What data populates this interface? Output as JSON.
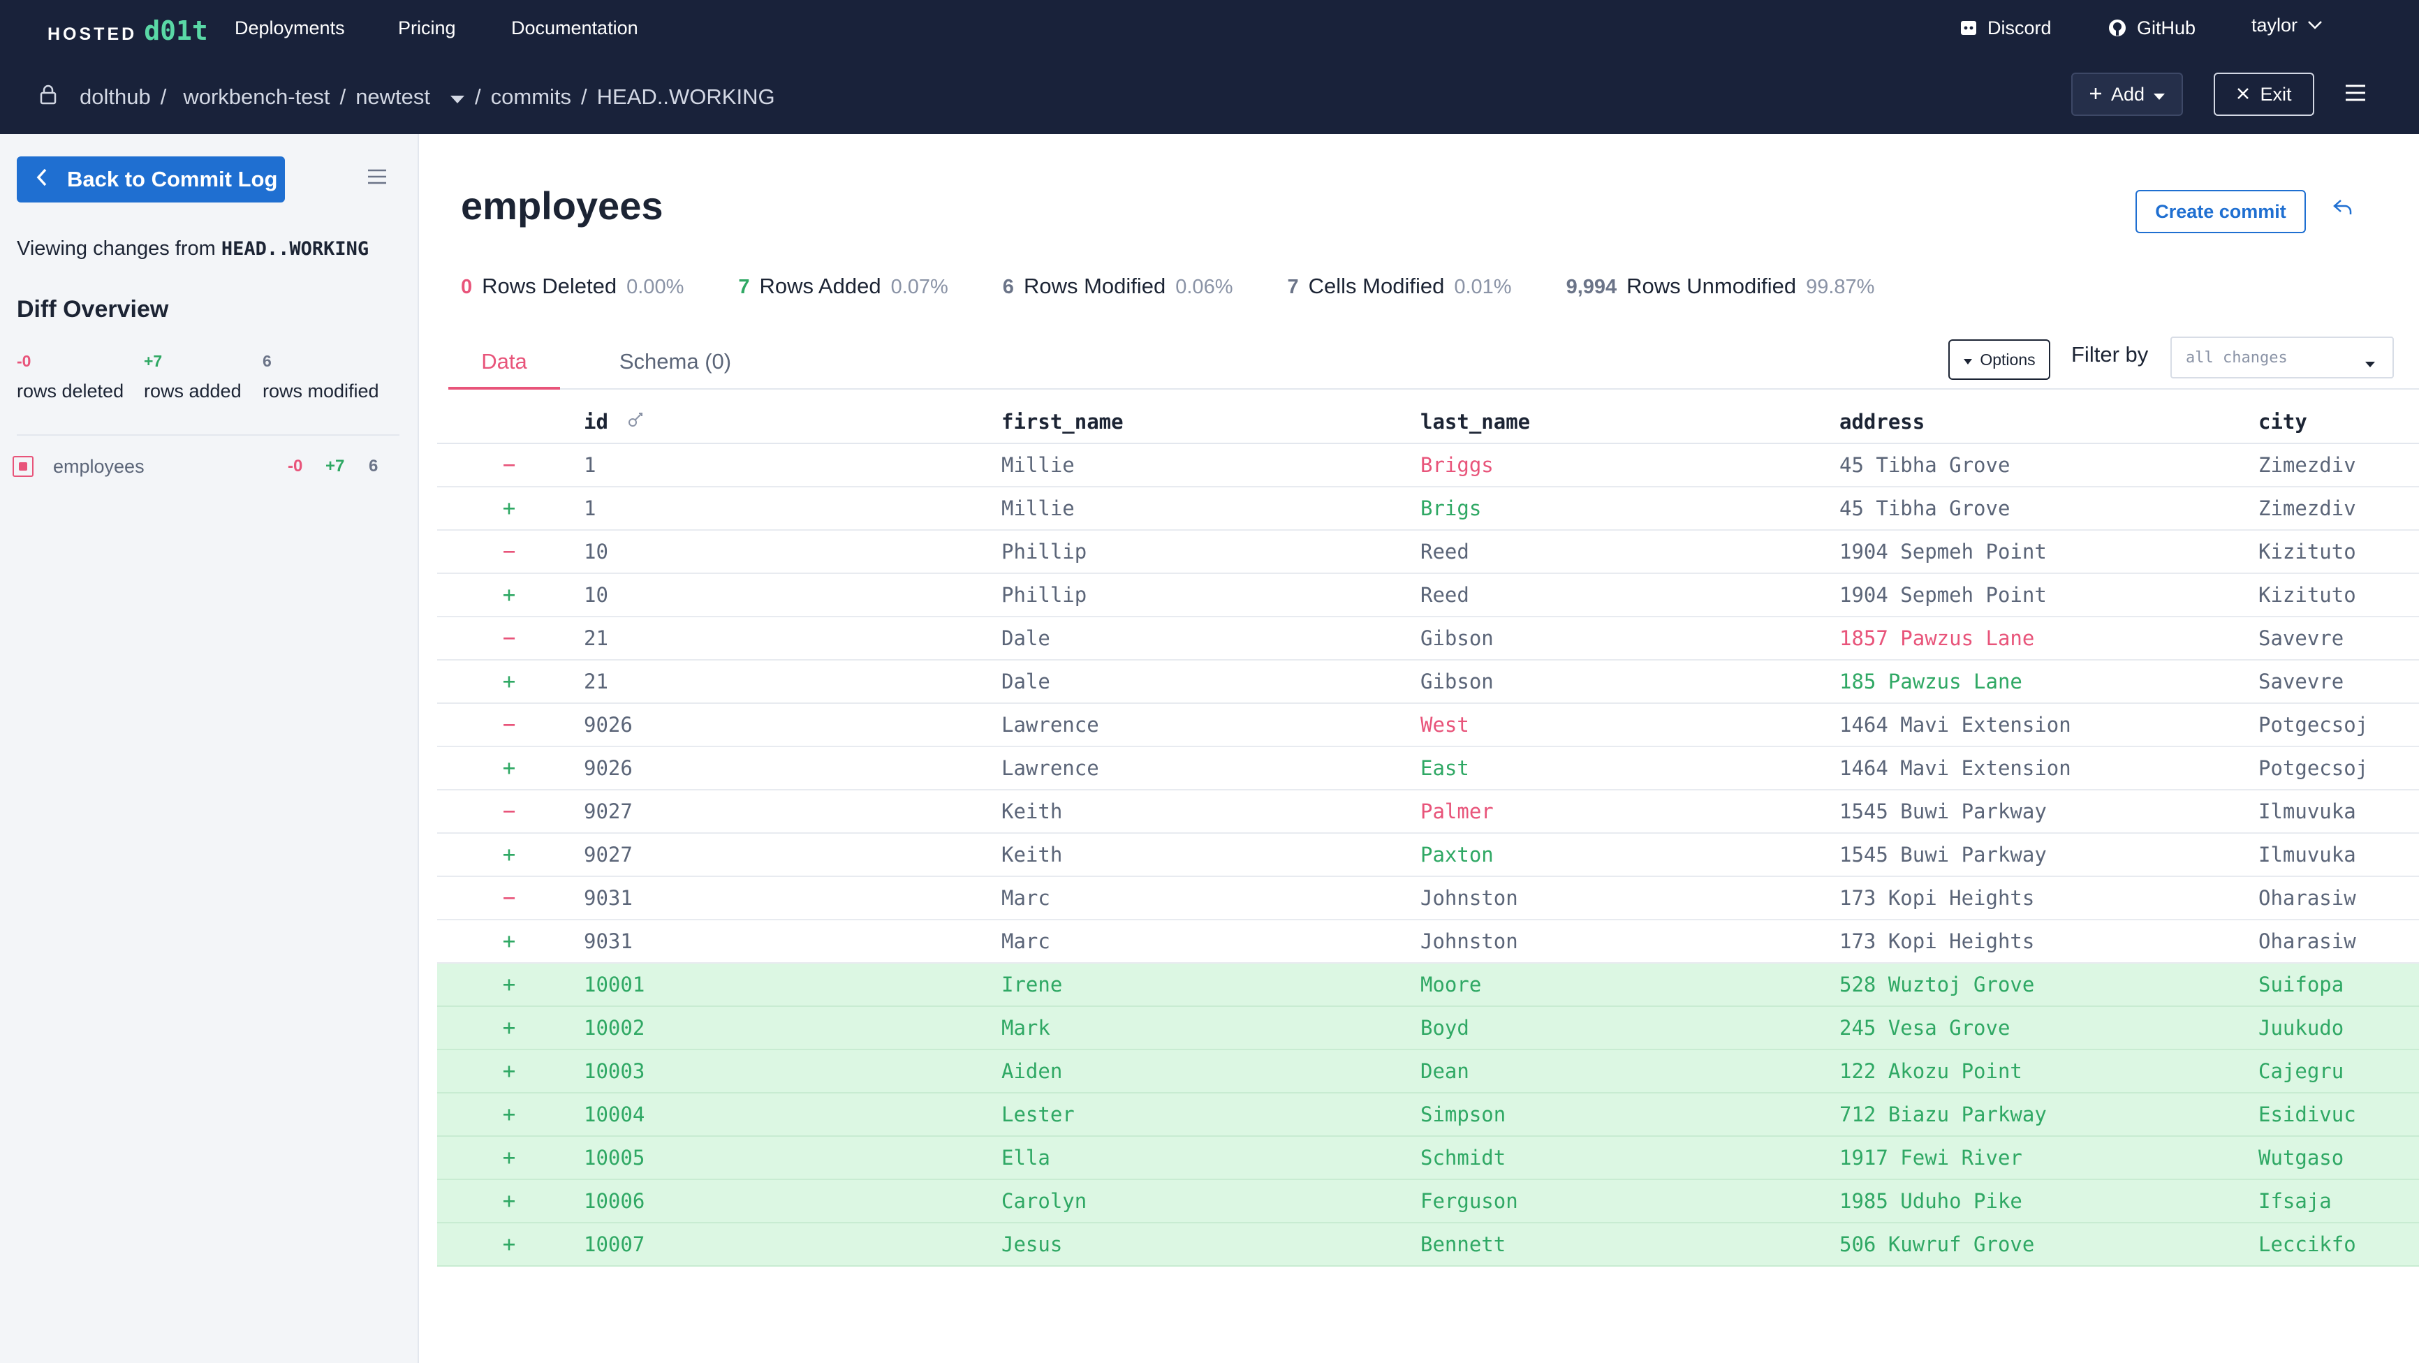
{
  "topbar": {
    "logo_hosted": "HOSTED",
    "logo_dolt": "d01t",
    "nav": [
      "Deployments",
      "Pricing",
      "Documentation"
    ],
    "discord": "Discord",
    "github": "GitHub",
    "user": "taylor",
    "breadcrumb": {
      "owner": "dolthub",
      "database": "workbench-test",
      "branch": "newtest",
      "section": "commits",
      "ref": "HEAD..WORKING"
    },
    "add_label": "Add",
    "exit_label": "Exit"
  },
  "sidebar": {
    "back_label": "Back to Commit Log",
    "viewing_prefix": "Viewing changes from ",
    "viewing_ref": "HEAD..WORKING",
    "diff_title": "Diff Overview",
    "stats": {
      "deleted_num": "-0",
      "deleted_label": "rows deleted",
      "added_num": "+7",
      "added_label": "rows added",
      "modified_num": "6",
      "modified_label": "rows modified"
    },
    "table": {
      "name": "employees",
      "deleted": "-0",
      "added": "+7",
      "modified": "6"
    }
  },
  "main": {
    "title": "employees",
    "create_commit": "Create commit",
    "summary": {
      "deleted_n": "0",
      "deleted_label": "Rows Deleted",
      "deleted_pct": "0.00%",
      "added_n": "7",
      "added_label": "Rows Added",
      "added_pct": "0.07%",
      "modified_n": "6",
      "modified_label": "Rows Modified",
      "modified_pct": "0.06%",
      "cells_n": "7",
      "cells_label": "Cells Modified",
      "cells_pct": "0.01%",
      "unmod_n": "9,994",
      "unmod_label": "Rows Unmodified",
      "unmod_pct": "99.87%"
    },
    "tabs": {
      "data": "Data",
      "schema": "Schema (0)"
    },
    "options_label": "Options",
    "filter_label": "Filter by",
    "filter_value": "all changes",
    "columns": [
      "id",
      "first_name",
      "last_name",
      "address",
      "city"
    ],
    "rows": [
      {
        "mark": "−",
        "type": "removed",
        "id": "1",
        "first": "Millie",
        "last": "Briggs",
        "addr": "45 Tibha Grove",
        "city": "Zimezdiv",
        "changed": "last"
      },
      {
        "mark": "+",
        "type": "added",
        "id": "1",
        "first": "Millie",
        "last": "Brigs",
        "addr": "45 Tibha Grove",
        "city": "Zimezdiv",
        "changed": "last"
      },
      {
        "mark": "−",
        "type": "removed",
        "id": "10",
        "first": "Phillip",
        "last": "Reed",
        "addr": "1904 Sepmeh Point",
        "city": "Kizituto",
        "changed": ""
      },
      {
        "mark": "+",
        "type": "added",
        "id": "10",
        "first": "Phillip",
        "last": "Reed",
        "addr": "1904 Sepmeh Point",
        "city": "Kizituto",
        "changed": ""
      },
      {
        "mark": "−",
        "type": "removed",
        "id": "21",
        "first": "Dale",
        "last": "Gibson",
        "addr": "1857 Pawzus Lane",
        "city": "Savevre",
        "changed": "addr"
      },
      {
        "mark": "+",
        "type": "added",
        "id": "21",
        "first": "Dale",
        "last": "Gibson",
        "addr": "185 Pawzus Lane",
        "city": "Savevre",
        "changed": "addr"
      },
      {
        "mark": "−",
        "type": "removed",
        "id": "9026",
        "first": "Lawrence",
        "last": "West",
        "addr": "1464 Mavi Extension",
        "city": "Potgecsoj",
        "changed": "last"
      },
      {
        "mark": "+",
        "type": "added",
        "id": "9026",
        "first": "Lawrence",
        "last": "East",
        "addr": "1464 Mavi Extension",
        "city": "Potgecsoj",
        "changed": "last"
      },
      {
        "mark": "−",
        "type": "removed",
        "id": "9027",
        "first": "Keith",
        "last": "Palmer",
        "addr": "1545 Buwi Parkway",
        "city": "Ilmuvuka",
        "changed": "last"
      },
      {
        "mark": "+",
        "type": "added",
        "id": "9027",
        "first": "Keith",
        "last": "Paxton",
        "addr": "1545 Buwi Parkway",
        "city": "Ilmuvuka",
        "changed": "last"
      },
      {
        "mark": "−",
        "type": "removed",
        "id": "9031",
        "first": "Marc",
        "last": "Johnston",
        "addr": "173 Kopi Heights",
        "city": "Oharasiw",
        "changed": ""
      },
      {
        "mark": "+",
        "type": "added",
        "id": "9031",
        "first": "Marc",
        "last": "Johnston",
        "addr": "173 Kopi Heights",
        "city": "Oharasiw",
        "changed": ""
      },
      {
        "mark": "+",
        "type": "new",
        "id": "10001",
        "first": "Irene",
        "last": "Moore",
        "addr": "528 Wuztoj Grove",
        "city": "Suifopa",
        "changed": ""
      },
      {
        "mark": "+",
        "type": "new",
        "id": "10002",
        "first": "Mark",
        "last": "Boyd",
        "addr": "245 Vesa Grove",
        "city": "Juukudo",
        "changed": ""
      },
      {
        "mark": "+",
        "type": "new",
        "id": "10003",
        "first": "Aiden",
        "last": "Dean",
        "addr": "122 Akozu Point",
        "city": "Cajegru",
        "changed": ""
      },
      {
        "mark": "+",
        "type": "new",
        "id": "10004",
        "first": "Lester",
        "last": "Simpson",
        "addr": "712 Biazu Parkway",
        "city": "Esidivuc",
        "changed": ""
      },
      {
        "mark": "+",
        "type": "new",
        "id": "10005",
        "first": "Ella",
        "last": "Schmidt",
        "addr": "1917 Fewi River",
        "city": "Wutgaso",
        "changed": ""
      },
      {
        "mark": "+",
        "type": "new",
        "id": "10006",
        "first": "Carolyn",
        "last": "Ferguson",
        "addr": "1985 Uduho Pike",
        "city": "Ifsaja",
        "changed": ""
      },
      {
        "mark": "+",
        "type": "new",
        "id": "10007",
        "first": "Jesus",
        "last": "Bennett",
        "addr": "506 Kuwruf Grove",
        "city": "Leccikfo",
        "changed": ""
      }
    ]
  },
  "colors": {
    "navy": "#19223a",
    "accent_blue": "#1f6fd1",
    "removed": "#e8547a",
    "added": "#2fa864",
    "new_row_bg": "#dcf7e3"
  }
}
